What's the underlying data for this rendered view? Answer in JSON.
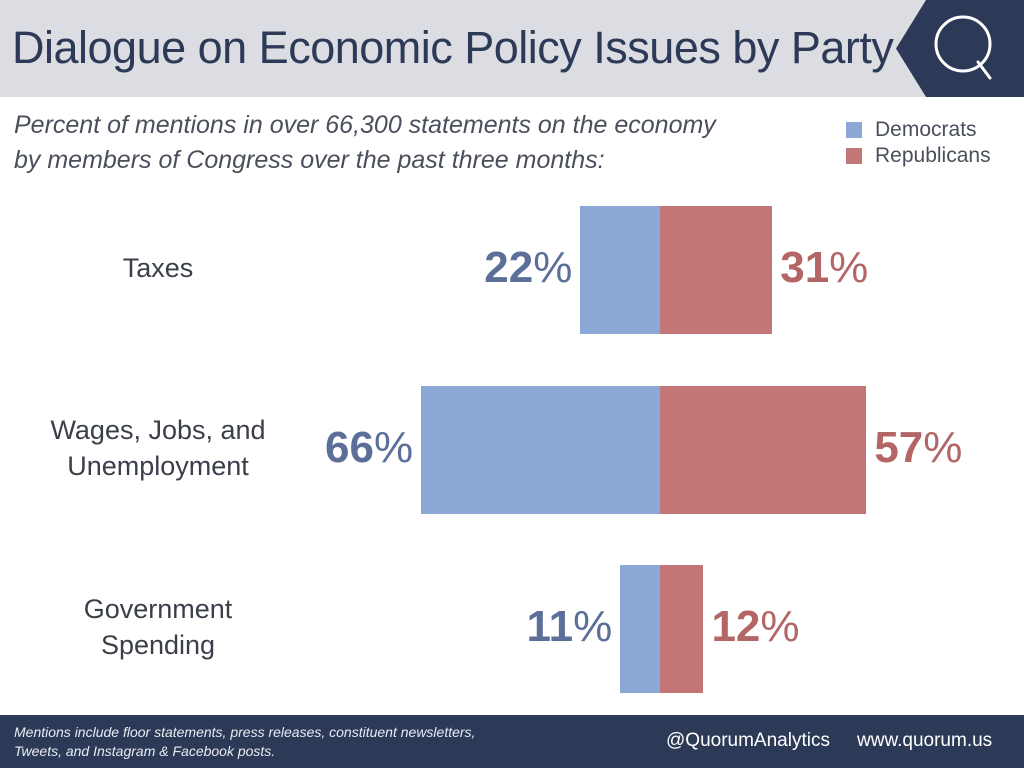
{
  "header": {
    "title": "Dialogue on Economic Policy Issues by Party",
    "logo_letter": "Q"
  },
  "subtitle": {
    "line1": "Percent of mentions in over 66,300 statements on the economy",
    "line2": "by members of Congress over the past three months:"
  },
  "colors": {
    "democrats": "#8ba7d6",
    "republicans": "#c27676",
    "dem_text": "#5b6f98",
    "rep_text": "#b46666",
    "navy": "#2d3a57"
  },
  "chart_data": {
    "type": "bar",
    "orientation": "diverging-horizontal",
    "categories": [
      "Taxes",
      "Wages, Jobs, and Unemployment",
      "Government Spending"
    ],
    "category_lines": [
      [
        "Taxes"
      ],
      [
        "Wages, Jobs, and",
        "Unemployment"
      ],
      [
        "Government",
        "Spending"
      ]
    ],
    "series": [
      {
        "name": "Democrats",
        "values": [
          22,
          66,
          11
        ]
      },
      {
        "name": "Republicans",
        "values": [
          31,
          57,
          12
        ]
      }
    ],
    "unit": "%",
    "legend": {
      "position": "top-right",
      "entries": [
        "Democrats",
        "Republicans"
      ]
    }
  },
  "footer": {
    "note_line1": "Mentions include floor statements, press releases, constituent newsletters,",
    "note_line2": "Tweets, and Instagram & Facebook posts.",
    "handle": "@QuorumAnalytics",
    "url": "www.quorum.us"
  }
}
